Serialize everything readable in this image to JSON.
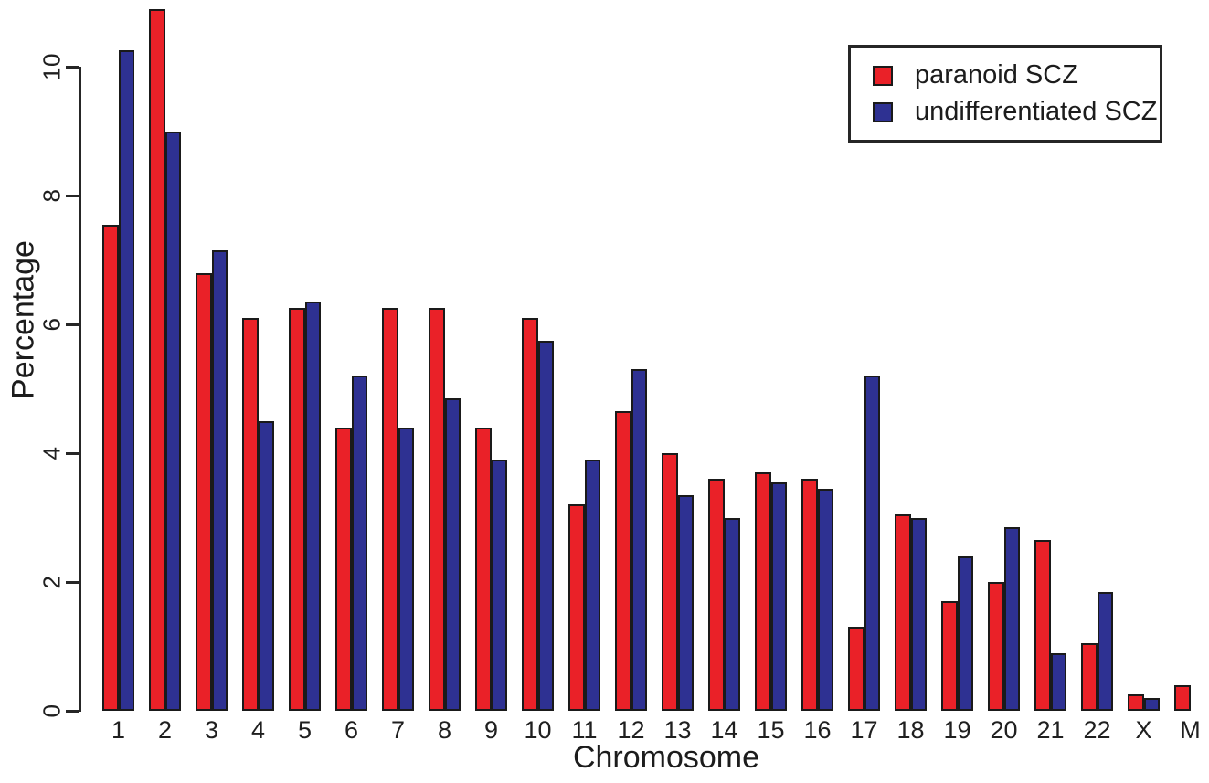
{
  "chart_data": {
    "type": "bar",
    "title": "",
    "xlabel": "Chromosome",
    "ylabel": "Percentage",
    "categories": [
      "1",
      "2",
      "3",
      "4",
      "5",
      "6",
      "7",
      "8",
      "9",
      "10",
      "11",
      "12",
      "13",
      "14",
      "15",
      "16",
      "17",
      "18",
      "19",
      "20",
      "21",
      "22",
      "X",
      "M"
    ],
    "series": [
      {
        "name": "paranoid SCZ",
        "color": "#ea2128",
        "values": [
          7.55,
          10.9,
          6.8,
          6.1,
          6.25,
          4.4,
          6.25,
          6.25,
          4.4,
          6.1,
          3.2,
          4.65,
          4.0,
          3.6,
          3.7,
          3.6,
          1.3,
          3.05,
          1.7,
          2.0,
          2.65,
          1.05,
          0.25,
          0.4
        ]
      },
      {
        "name": "undifferentiated SCZ",
        "color": "#2e3192",
        "values": [
          10.25,
          9.0,
          7.15,
          4.5,
          6.35,
          5.2,
          4.4,
          4.85,
          3.9,
          5.75,
          3.9,
          5.3,
          3.35,
          3.0,
          3.55,
          3.45,
          5.2,
          3.0,
          2.4,
          2.85,
          0.9,
          1.85,
          0.2,
          null
        ]
      }
    ],
    "ylim": [
      0,
      10
    ],
    "yticks": [
      0,
      2,
      4,
      6,
      8,
      10
    ],
    "grid": false,
    "legend_position": "top-right",
    "bar_outline_color": "#1a1a1a"
  }
}
